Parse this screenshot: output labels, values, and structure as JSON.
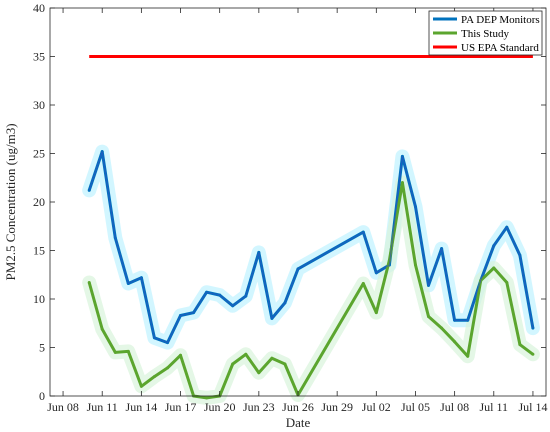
{
  "chart_data": {
    "type": "line",
    "xlabel": "Date",
    "ylabel": "PM2.5 Concentration (ug/m3)",
    "ylim": [
      0,
      40
    ],
    "yticks": [
      0,
      5,
      10,
      15,
      20,
      25,
      30,
      35,
      40
    ],
    "xlim": [
      "2015-06-07",
      "2015-07-15"
    ],
    "xtick_dates": [
      "2015-06-08",
      "2015-06-11",
      "2015-06-14",
      "2015-06-17",
      "2015-06-20",
      "2015-06-23",
      "2015-06-26",
      "2015-06-29",
      "2015-07-02",
      "2015-07-05",
      "2015-07-08",
      "2015-07-11",
      "2015-07-14"
    ],
    "xtick_labels": [
      "Jun 08",
      "Jun 11",
      "Jun 14",
      "Jun 17",
      "Jun 20",
      "Jun 23",
      "Jun 26",
      "Jun 29",
      "Jul 02",
      "Jul 05",
      "Jul 08",
      "Jul 11",
      "Jul 14"
    ],
    "grid": false,
    "legend_position": "top-right",
    "series": [
      {
        "name": "PA DEP Monitors",
        "color": "#0072BD",
        "x": [
          "2015-06-10",
          "2015-06-11",
          "2015-06-12",
          "2015-06-13",
          "2015-06-14",
          "2015-06-15",
          "2015-06-16",
          "2015-06-17",
          "2015-06-18",
          "2015-06-19",
          "2015-06-20",
          "2015-06-21",
          "2015-06-22",
          "2015-06-23",
          "2015-06-24",
          "2015-06-25",
          "2015-06-26",
          "2015-07-01",
          "2015-07-02",
          "2015-07-03",
          "2015-07-04",
          "2015-07-05",
          "2015-07-06",
          "2015-07-07",
          "2015-07-08",
          "2015-07-09",
          "2015-07-10",
          "2015-07-11",
          "2015-07-12",
          "2015-07-13",
          "2015-07-14"
        ],
        "values": [
          21.2,
          25.2,
          16.3,
          11.6,
          12.2,
          6.0,
          5.5,
          8.3,
          8.6,
          10.7,
          10.4,
          9.3,
          10.3,
          14.8,
          8.0,
          9.6,
          13.1,
          16.9,
          12.7,
          13.5,
          24.7,
          19.5,
          11.4,
          15.2,
          7.8,
          7.8,
          11.9,
          15.5,
          17.4,
          14.5,
          7.0
        ]
      },
      {
        "name": "This Study",
        "color": "#5BA52E",
        "x": [
          "2015-06-10",
          "2015-06-11",
          "2015-06-12",
          "2015-06-13",
          "2015-06-14",
          "2015-06-15",
          "2015-06-16",
          "2015-06-17",
          "2015-06-18",
          "2015-06-19",
          "2015-06-20",
          "2015-06-21",
          "2015-06-22",
          "2015-06-23",
          "2015-06-24",
          "2015-06-25",
          "2015-06-26",
          "2015-07-01",
          "2015-07-02",
          "2015-07-03",
          "2015-07-04",
          "2015-07-05",
          "2015-07-06",
          "2015-07-07",
          "2015-07-08",
          "2015-07-09",
          "2015-07-10",
          "2015-07-11",
          "2015-07-12",
          "2015-07-13",
          "2015-07-14"
        ],
        "values": [
          11.7,
          6.9,
          4.5,
          4.6,
          1.0,
          2.0,
          2.9,
          4.2,
          0.0,
          -0.2,
          0.0,
          3.3,
          4.3,
          2.4,
          3.9,
          3.3,
          0.1,
          11.6,
          8.6,
          14.0,
          22.0,
          13.5,
          8.2,
          7.0,
          5.6,
          4.1,
          11.9,
          13.2,
          11.7,
          5.3,
          4.3
        ]
      },
      {
        "name": "US EPA Standard",
        "color": "#FF0000",
        "x": [
          "2015-06-10",
          "2015-07-14"
        ],
        "values": [
          35,
          35
        ]
      }
    ]
  }
}
